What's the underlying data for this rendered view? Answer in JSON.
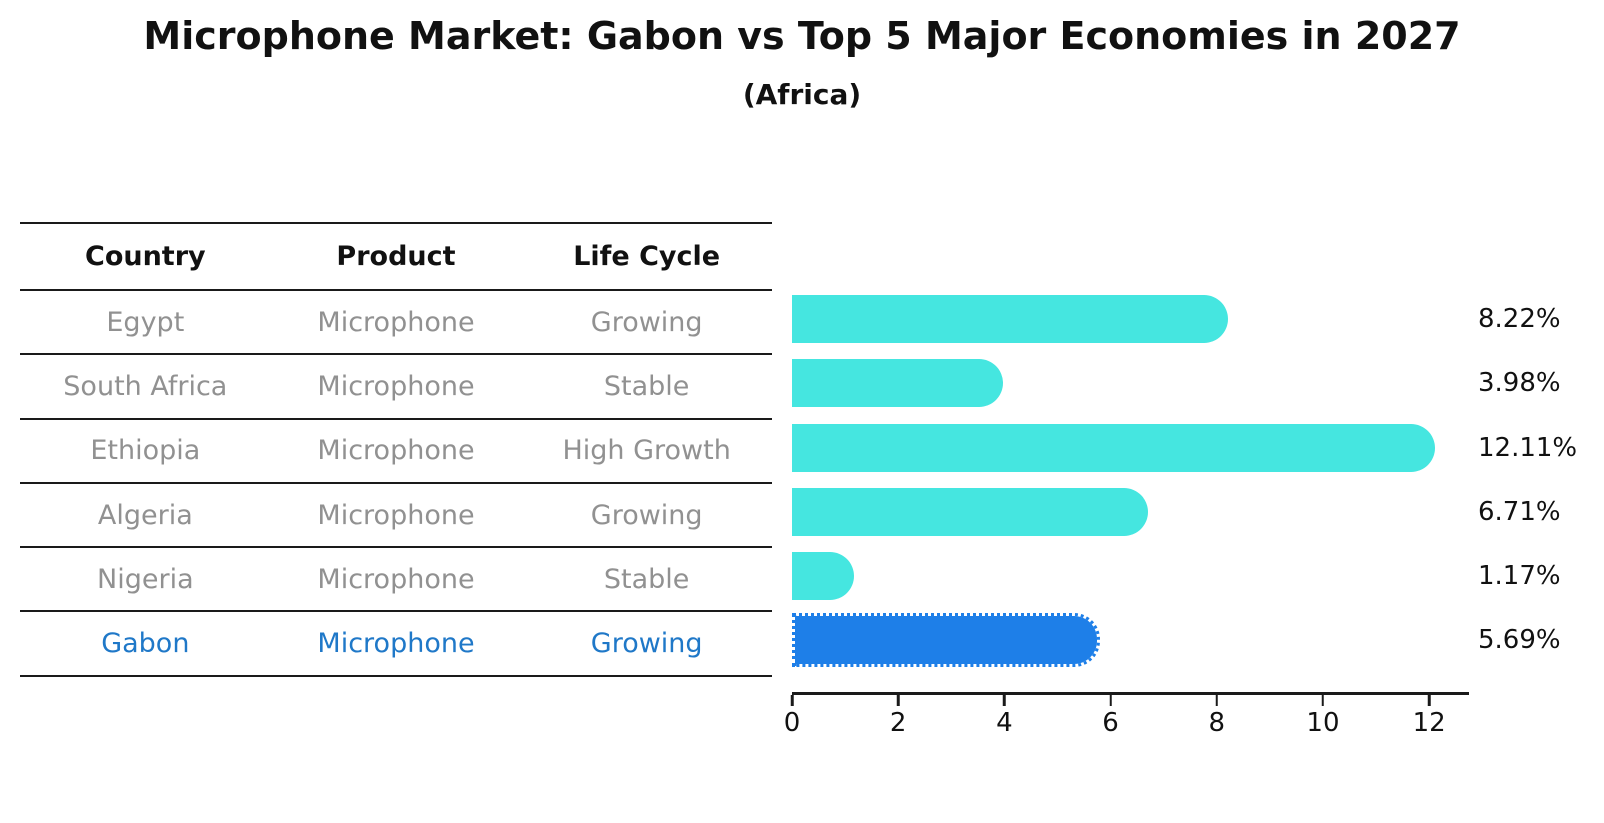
{
  "title": "Microphone Market: Gabon vs Top 5 Major Economies in 2027",
  "subtitle": "(Africa)",
  "table": {
    "headers": [
      "Country",
      "Product",
      "Life Cycle"
    ],
    "rows": [
      {
        "country": "Egypt",
        "product": "Microphone",
        "life_cycle": "Growing",
        "highlight": false
      },
      {
        "country": "South Africa",
        "product": "Microphone",
        "life_cycle": "Stable",
        "highlight": false
      },
      {
        "country": "Ethiopia",
        "product": "Microphone",
        "life_cycle": "High Growth",
        "highlight": false
      },
      {
        "country": "Algeria",
        "product": "Microphone",
        "life_cycle": "Growing",
        "highlight": false
      },
      {
        "country": "Nigeria",
        "product": "Microphone",
        "life_cycle": "Stable",
        "highlight": false
      },
      {
        "country": "Gabon",
        "product": "Microphone",
        "life_cycle": "Growing",
        "highlight": true
      }
    ]
  },
  "chart_data": {
    "type": "bar",
    "orientation": "horizontal",
    "title": "Microphone Market: Gabon vs Top 5 Major Economies in 2027 (Africa)",
    "categories": [
      "Egypt",
      "South Africa",
      "Ethiopia",
      "Algeria",
      "Nigeria",
      "Gabon"
    ],
    "values": [
      8.22,
      3.98,
      12.11,
      6.71,
      1.17,
      5.69
    ],
    "value_labels": [
      "8.22%",
      "3.98%",
      "12.11%",
      "6.71%",
      "1.17%",
      "5.69%"
    ],
    "highlight_category": "Gabon",
    "highlight_index": 5,
    "xlim": [
      0,
      12.75
    ],
    "xticks": [
      0,
      2,
      4,
      6,
      8,
      10,
      12
    ],
    "grid": false,
    "legend": false,
    "bar_color_default": "#45E6E0",
    "bar_color_highlight": "#1E7FE8"
  },
  "colors": {
    "bar_default": "#45E6E0",
    "bar_highlight": "#1E7FE8",
    "highlight_text": "#1F78C8",
    "muted_row_text": "#919191",
    "heading_text": "#111111",
    "table_line": "#1a1a1a"
  }
}
